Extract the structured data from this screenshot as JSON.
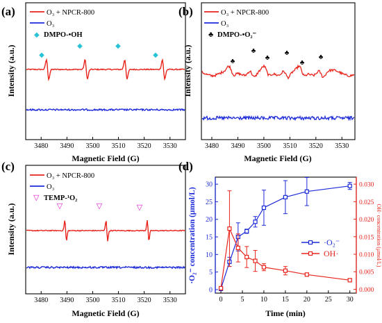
{
  "panels": [
    {
      "id": "a",
      "letter": "(a)",
      "type": "line",
      "xlabel": "Magnetic Field (G)",
      "ylabel": "Intensity (a.u.)",
      "xlim": [
        3474,
        3536
      ],
      "xticks": [
        3480,
        3490,
        3500,
        3510,
        3520,
        3530
      ],
      "legend": [
        {
          "label": "O₃ + NPCR-800",
          "kind": "line",
          "color": "#e8231b"
        },
        {
          "label": "O₃",
          "kind": "line",
          "color": "#1c2ad8"
        },
        {
          "label": "DMPO-•OH",
          "kind": "symbol",
          "symbol": "◆",
          "color": "#27c2d6"
        }
      ],
      "peak_positions": [
        3482.5,
        3497.5,
        3512.9,
        3527.5
      ]
    },
    {
      "id": "b",
      "letter": "(b)",
      "type": "line",
      "xlabel": "Magnetic Field (G)",
      "ylabel": "Intensity (a.u.)",
      "xlim": [
        3476,
        3535
      ],
      "xticks": [
        3480,
        3490,
        3500,
        3510,
        3520,
        3530
      ],
      "legend": [
        {
          "label": "O₃ + NPCR-800",
          "kind": "line",
          "color": "#e8231b"
        },
        {
          "label": "O₃",
          "kind": "line",
          "color": "#1c2ad8"
        },
        {
          "label": "DMPO-•O₂⁻",
          "kind": "symbol",
          "symbol": "♣",
          "color": "#000000"
        }
      ],
      "peak_positions": [
        3487.5,
        3495.5,
        3501,
        3508.5,
        3514.5,
        3522
      ]
    },
    {
      "id": "c",
      "letter": "(c)",
      "type": "line",
      "xlabel": "Magnetic Field (G)",
      "ylabel": "Intensity (a.u.)",
      "xlim": [
        3474,
        3536
      ],
      "xticks": [
        3480,
        3490,
        3500,
        3510,
        3520,
        3530
      ],
      "legend": [
        {
          "label": "O₃ + NPCR-800",
          "kind": "line",
          "color": "#e8231b"
        },
        {
          "label": "O₃",
          "kind": "line",
          "color": "#1c2ad8"
        },
        {
          "label": "TEMP-¹O₂",
          "kind": "symbol",
          "symbol": "▽",
          "color": "#e21ad0"
        }
      ],
      "peak_positions": [
        3489.5,
        3505.5,
        3521.5
      ]
    },
    {
      "id": "d",
      "letter": "(d)",
      "xlabel": "Time (min)",
      "y1label": "·O₂⁻ concentration (μmol/L)",
      "y2label": "OH· concentration (μmol/L)"
    }
  ],
  "chart_data": [
    {
      "panel": "d",
      "type": "line",
      "xlabel": "Time (min)",
      "x": [
        0,
        2,
        4,
        6,
        8,
        10,
        15,
        20,
        30
      ],
      "xlim": [
        -1.3,
        31.5
      ],
      "xticks": [
        0,
        5,
        10,
        15,
        20,
        25,
        30
      ],
      "y1lim": [
        -1,
        32
      ],
      "y1ticks": [
        0,
        5,
        10,
        15,
        20,
        25,
        30
      ],
      "y2lim": [
        -0.0011,
        0.032
      ],
      "y2ticks": [
        0.0,
        0.005,
        0.01,
        0.015,
        0.02,
        0.025,
        0.03
      ],
      "y2ticklabels": [
        "0.000",
        "0.005",
        "0.010",
        "0.015",
        "0.020",
        "0.025",
        "0.030"
      ],
      "legend_position": "center-right",
      "series": [
        {
          "name": "·O₂⁻",
          "axis": "left",
          "color": "#1c2ad8",
          "values": [
            0.2,
            7.9,
            15.0,
            16.6,
            19.3,
            23.3,
            26.3,
            27.9,
            29.5
          ],
          "errors": [
            0.2,
            1.3,
            4.0,
            0.6,
            1.5,
            5.0,
            4.7,
            4.0,
            1.0
          ]
        },
        {
          "name": "OH·",
          "axis": "right",
          "color": "#e8231b",
          "values": [
            0.0003,
            0.0173,
            0.0118,
            0.0092,
            0.0081,
            0.0063,
            0.0053,
            0.0042,
            0.0026
          ],
          "errors": [
            0.0002,
            0.0108,
            0.004,
            0.003,
            0.003,
            0.001,
            0.0012,
            0.0003,
            0.0002
          ]
        }
      ]
    }
  ]
}
